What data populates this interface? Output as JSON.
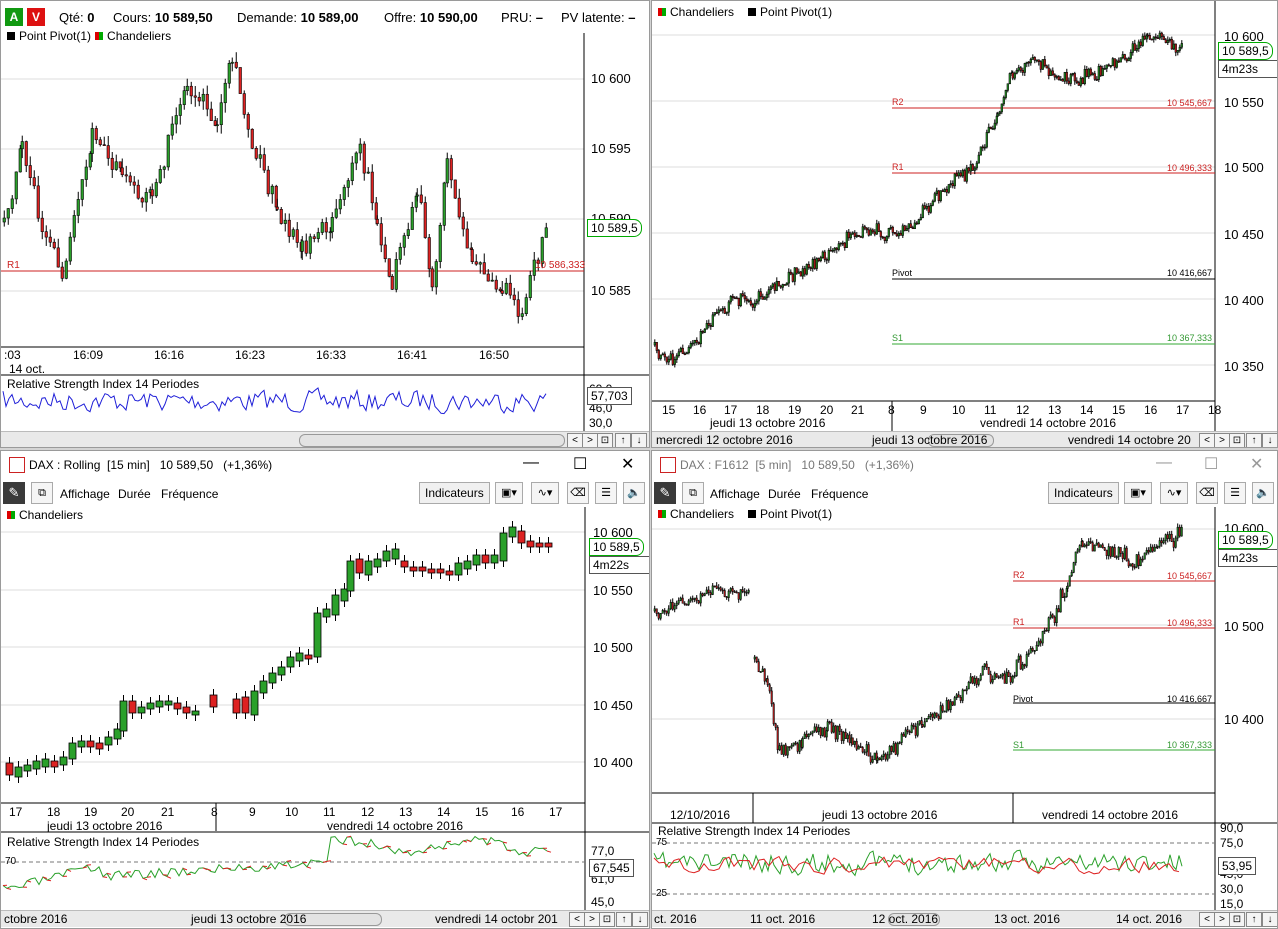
{
  "top_left": {
    "order_bar": {
      "buy": "A",
      "sell": "V",
      "qte_label": "Qté:",
      "qte_value": "0",
      "cours_label": "Cours:",
      "cours_value": "10 589,50",
      "demande_label": "Demande:",
      "demande_value": "10 589,00",
      "offre_label": "Offre:",
      "offre_value": "10 590,00",
      "pru_label": "PRU:",
      "pru_value": "–",
      "pv_label": "PV latente:",
      "pv_value": "–"
    },
    "legend": [
      "Point Pivot(1)",
      "Chandeliers"
    ],
    "y_ticks": [
      "10 600",
      "10 595",
      "10 590",
      "10 585"
    ],
    "price_tag": "10 589,5",
    "r1_label": "R1",
    "r1_value": "10 586,333",
    "x_ticks": [
      ":03",
      "16:09",
      "16:16",
      "16:23",
      "16:33",
      "16:41",
      "16:50"
    ],
    "date_label": "14 oct.",
    "rsi_title": "Relative Strength Index 14 Periodes",
    "rsi_ticks": [
      "60,0",
      "46,0",
      "30,0"
    ],
    "rsi_value": "57,703"
  },
  "top_right": {
    "legend": [
      "Chandeliers",
      "Point Pivot(1)"
    ],
    "y_ticks": [
      "10 600",
      "10 550",
      "10 500",
      "10 450",
      "10 400",
      "10 350"
    ],
    "price_tag": "10 589,5",
    "time_tag": "4m23s",
    "levels": [
      {
        "name": "R2",
        "value": "10 545,667"
      },
      {
        "name": "R1",
        "value": "10 496,333"
      },
      {
        "name": "Pivot",
        "value": "10 416,667"
      },
      {
        "name": "S1",
        "value": "10 367,333"
      }
    ],
    "x_ticks": [
      "15",
      "16",
      "17",
      "18",
      "19",
      "20",
      "21",
      "8",
      "9",
      "10",
      "11",
      "12",
      "13",
      "14",
      "15",
      "16",
      "17",
      "18"
    ],
    "day_labels": [
      "jeudi 13 octobre 2016",
      "vendredi 14 octobre 2016"
    ],
    "scroll_labels": [
      "mercredi 12 octobre 2016",
      "jeudi 13 octobre 2016",
      "vendredi 14 octobre 20"
    ]
  },
  "bottom_left": {
    "title": "DAX : Rolling",
    "interval": "[15 min]",
    "last": "10 589,50",
    "change": "(+1,36%)",
    "menu": [
      "Affichage",
      "Durée",
      "Fréquence"
    ],
    "indicators_button": "Indicateurs",
    "legend": [
      "Chandeliers"
    ],
    "y_ticks": [
      "10 600",
      "10 550",
      "10 500",
      "10 450",
      "10 400"
    ],
    "price_tag": "10 589,5",
    "time_tag": "4m22s",
    "x_ticks": [
      "17",
      "18",
      "19",
      "20",
      "21",
      "8",
      "9",
      "10",
      "11",
      "12",
      "13",
      "14",
      "15",
      "16",
      "17"
    ],
    "day_labels": [
      "jeudi 13 octobre 2016",
      "vendredi 14 octobre 2016"
    ],
    "rsi_title": "Relative Strength Index 14 Periodes",
    "rsi_ticks": [
      "77,0",
      "61,0",
      "45,0"
    ],
    "rsi_level": "70",
    "rsi_value": "67,545",
    "scroll_labels": [
      "ctobre 2016",
      "jeudi 13 octobre 2016",
      "vendredi 14 octobr 201"
    ]
  },
  "bottom_right": {
    "title": "DAX : F1612",
    "interval": "[5 min]",
    "last": "10 589,50",
    "change": "(+1,36%)",
    "menu": [
      "Affichage",
      "Durée",
      "Fréquence"
    ],
    "indicators_button": "Indicateurs",
    "legend": [
      "Chandeliers",
      "Point Pivot(1)"
    ],
    "y_ticks": [
      "10 600",
      "10 500",
      "10 400"
    ],
    "price_tag": "10 589,5",
    "time_tag": "4m23s",
    "levels": [
      {
        "name": "R2",
        "value": "10 545,667"
      },
      {
        "name": "R1",
        "value": "10 496,333"
      },
      {
        "name": "Pivot",
        "value": "10 416,667"
      },
      {
        "name": "S1",
        "value": "10 367,333"
      }
    ],
    "day_labels": [
      "12/10/2016",
      "jeudi 13 octobre 2016",
      "vendredi 14 octobre 2016"
    ],
    "rsi_title": "Relative Strength Index 14 Periodes",
    "rsi_ticks": [
      "90,0",
      "75,0",
      "45,0",
      "30,0",
      "15,0"
    ],
    "rsi_levels": [
      "75",
      "25"
    ],
    "rsi_value": "53,95",
    "scroll_labels": [
      "ct. 2016",
      "11 oct. 2016",
      "12 oct. 2016",
      "13 oct. 2016",
      "14 oct. 2016"
    ]
  },
  "colors": {
    "up": "#2aa02a",
    "down": "#dd2222",
    "rsi_blue": "#1f1fd8",
    "level_red": "#cc2222",
    "level_green": "#33aa33"
  }
}
